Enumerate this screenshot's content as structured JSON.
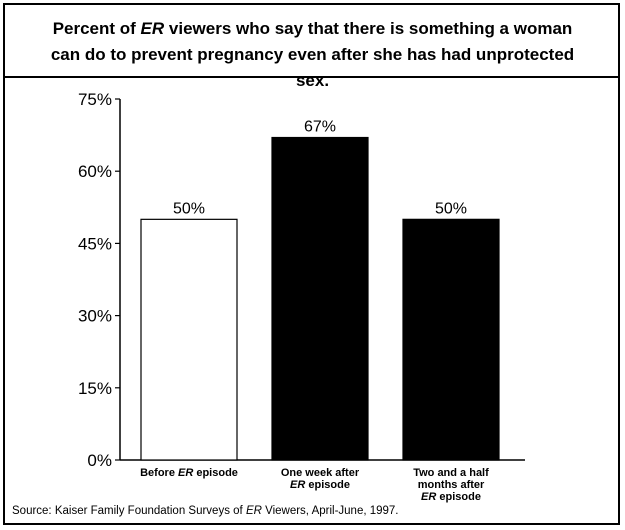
{
  "chart_data": {
    "type": "bar",
    "title_parts": [
      "Percent of ",
      "ER",
      " viewers who say that there is something a woman can do to prevent pregnancy even after she has had unprotected sex."
    ],
    "categories": [
      [
        "Before ",
        "ER",
        " episode"
      ],
      [
        "One week after",
        "ER",
        " episode"
      ],
      [
        "Two and a half",
        "months after",
        "ER",
        " episode"
      ]
    ],
    "category_labels": [
      "Before ER episode",
      "One week after ER episode",
      "Two and a half months after ER episode"
    ],
    "values": [
      50,
      67,
      50
    ],
    "value_labels": [
      "50%",
      "67%",
      "50%"
    ],
    "bar_colors": [
      "#ffffff",
      "#000000",
      "#000000"
    ],
    "ylim": [
      0,
      75
    ],
    "yticks": [
      "0%",
      "15%",
      "30%",
      "45%",
      "60%",
      "75%"
    ],
    "ytick_values": [
      0,
      15,
      30,
      45,
      60,
      75
    ],
    "grid": false,
    "legend": "none"
  },
  "source_parts": [
    "Source: Kaiser Family Foundation Surveys of ",
    "ER",
    " Viewers, April-June, 1997."
  ]
}
